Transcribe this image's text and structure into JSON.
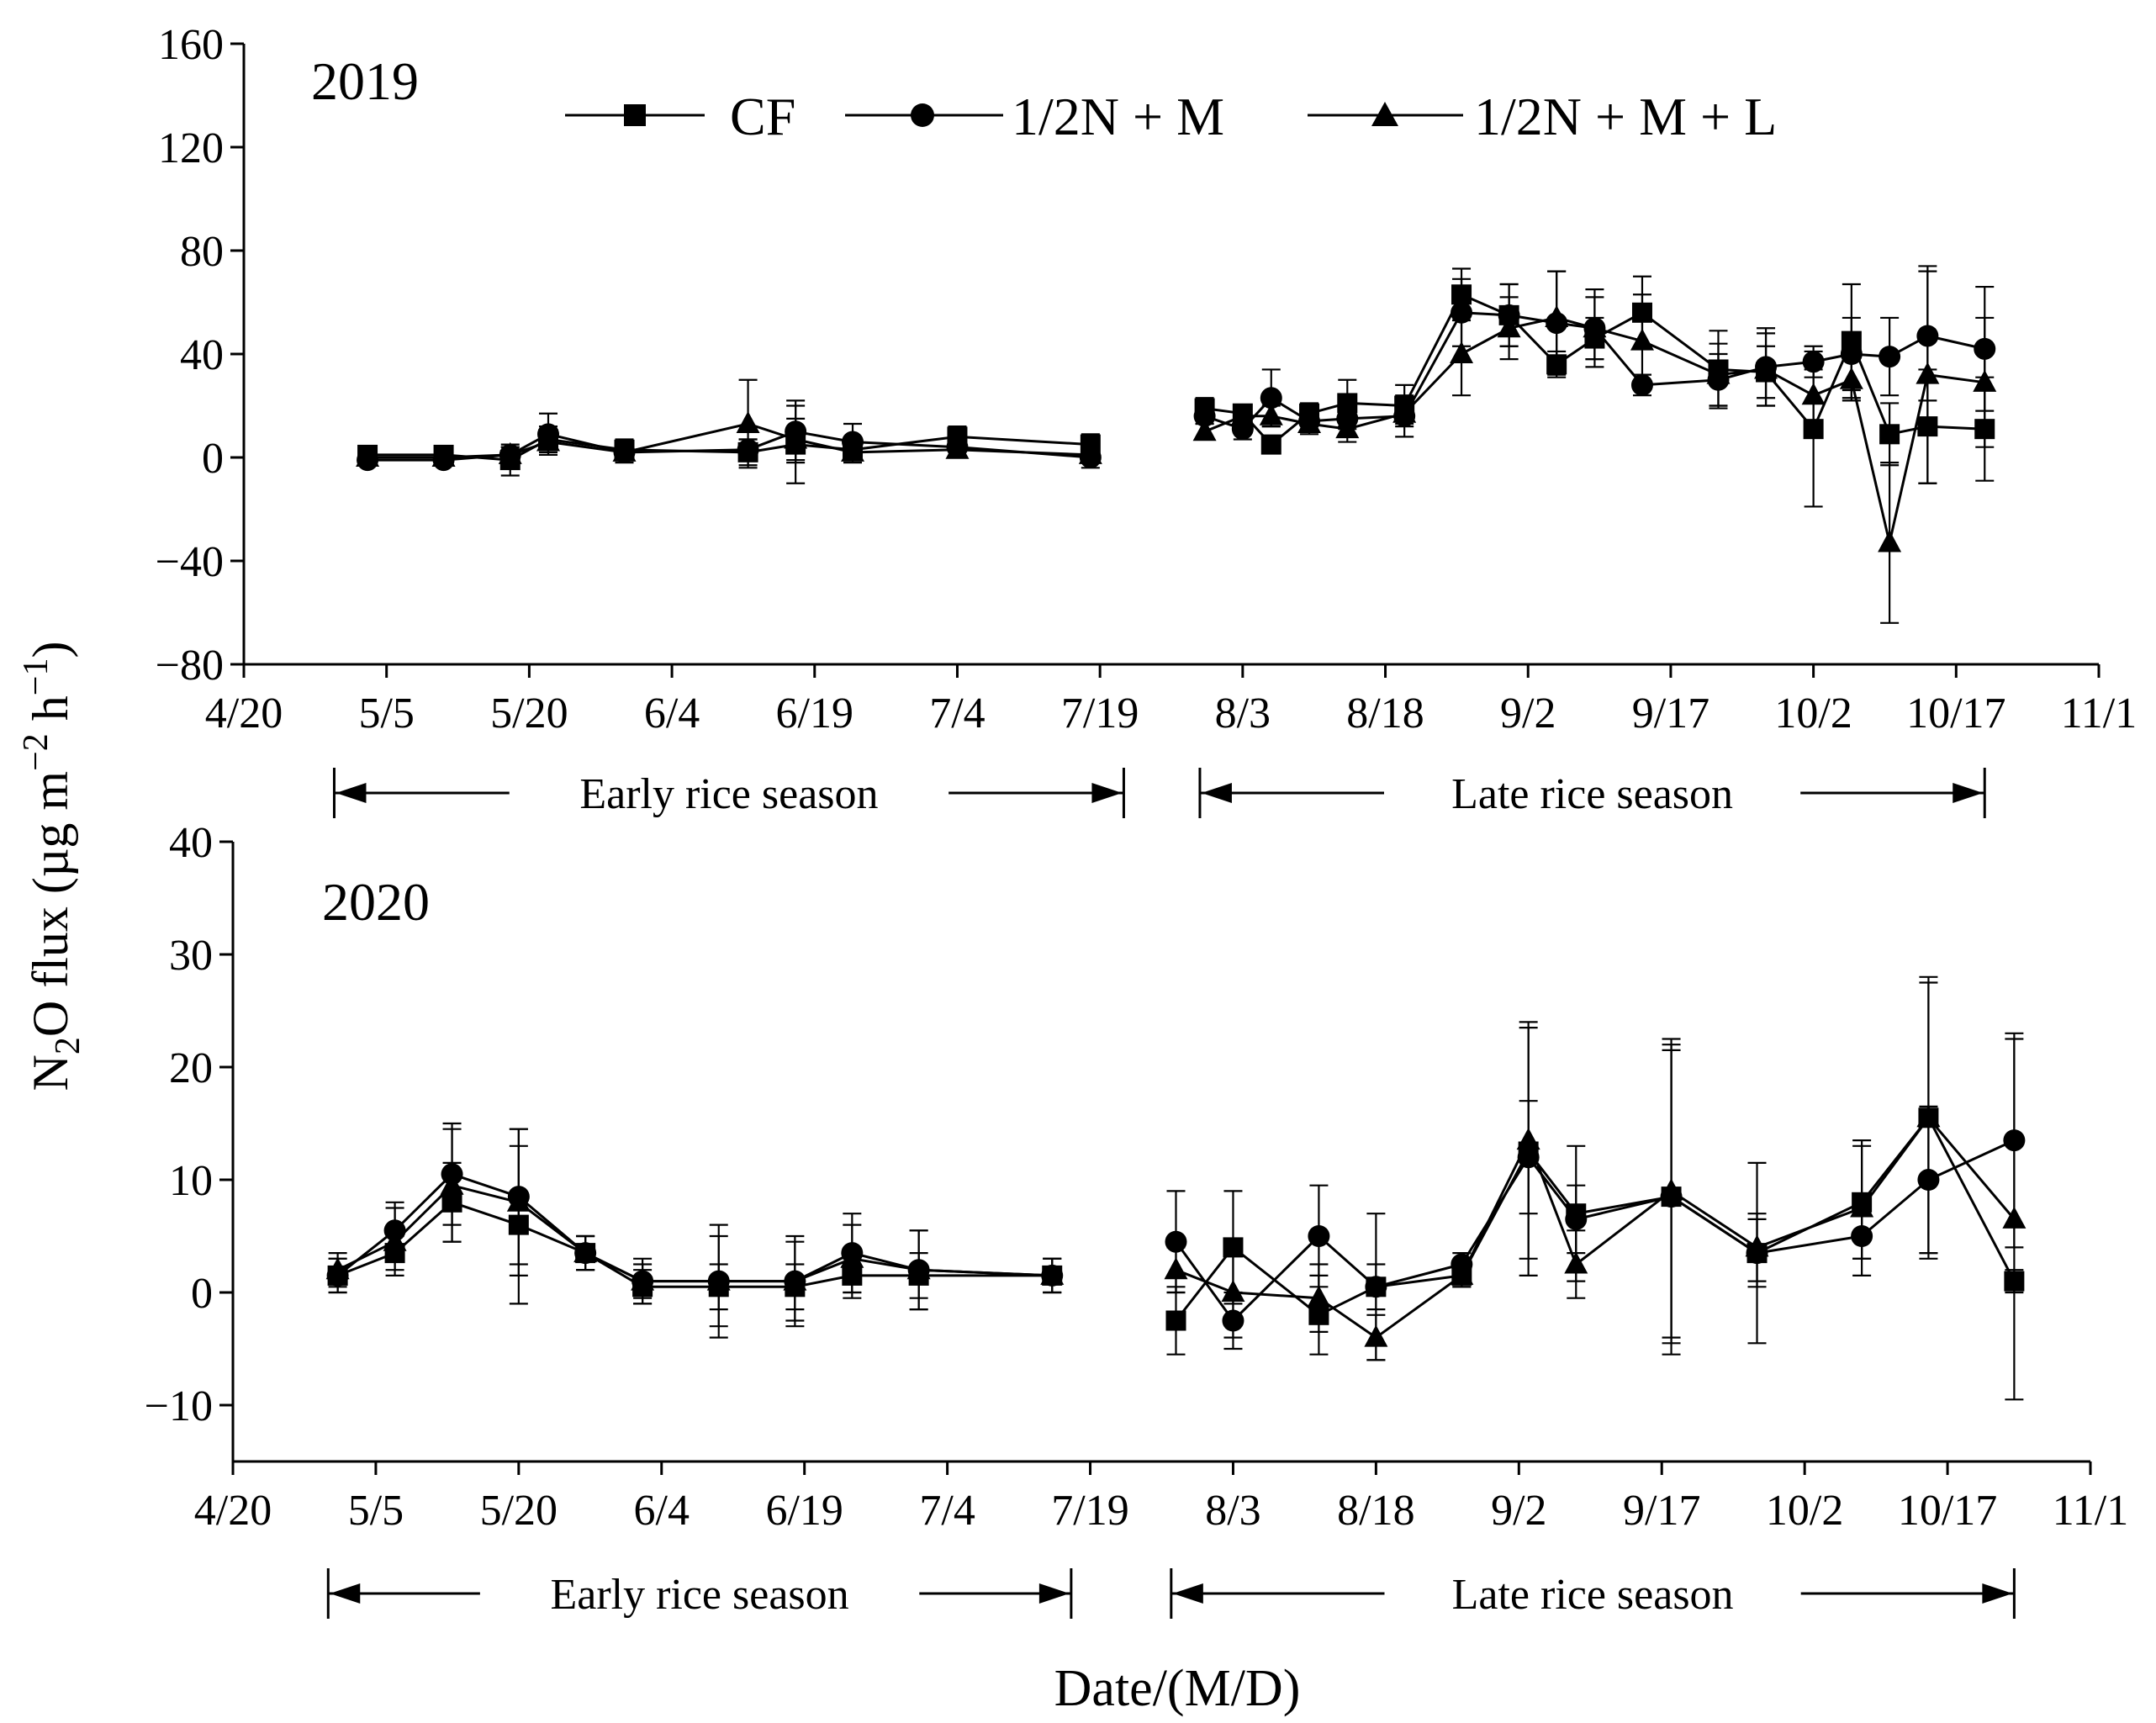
{
  "figure": {
    "y_axis_label_main": "N",
    "y_axis_label_sub": "2",
    "y_axis_label_rest": "O flux (µg m",
    "y_axis_label_exp1": "−2",
    "y_axis_label_mid": " h",
    "y_axis_label_exp2": "−1",
    "y_axis_label_end": ")",
    "x_axis_label": "Date/(M/D)",
    "line_color": "#000000",
    "background": "#ffffff"
  },
  "legend": [
    "CF",
    "1/2N + M",
    "1/2N + M + L"
  ],
  "chart_data": [
    {
      "type": "line",
      "title": "2019",
      "xlabel": "Date/(M/D)",
      "ylabel": "N2O flux (µg m−2 h−1)",
      "x_unit": "day of year",
      "xlim": [
        110,
        305
      ],
      "ylim": [
        -80,
        160
      ],
      "x_ticks": [
        110,
        125,
        140,
        155,
        170,
        185,
        200,
        215,
        230,
        245,
        260,
        275,
        290,
        305
      ],
      "x_tick_labels": [
        "4/20",
        "5/5",
        "5/20",
        "6/4",
        "6/19",
        "7/4",
        "7/19",
        "8/3",
        "8/18",
        "9/2",
        "9/17",
        "10/2",
        "10/17",
        "11/1"
      ],
      "y_ticks": [
        -80,
        -40,
        0,
        40,
        80,
        120,
        160
      ],
      "y_tick_labels": [
        "−80",
        "−40",
        "0",
        "40",
        "80",
        "120",
        "160"
      ],
      "seasons": [
        {
          "label": "Early rice season",
          "start": 119.5,
          "end": 202.5
        },
        {
          "label": "Late rice season",
          "start": 210.5,
          "end": 293
        }
      ],
      "series": [
        {
          "name": "CF",
          "marker": "square",
          "segments": [
            {
              "x": [
                123,
                131,
                138,
                142,
                150,
                163,
                168,
                174,
                185,
                199
              ],
              "y": [
                1,
                1,
                -1,
                7,
                3,
                2,
                5,
                3,
                8,
                5
              ],
              "err": [
                2,
                2,
                6,
                5,
                4,
                5,
                15,
                4,
                4,
                4
              ]
            },
            {
              "x": [
                211,
                215,
                218,
                222,
                226,
                232,
                238,
                243,
                248,
                252,
                257,
                265,
                270,
                275,
                279,
                283,
                287,
                293
              ],
              "y": [
                19,
                17,
                5,
                17,
                21,
                20,
                63,
                55,
                36,
                46,
                56,
                34,
                33,
                11,
                45,
                9,
                12,
                11
              ],
              "err": [
                4,
                3,
                3,
                4,
                9,
                8,
                10,
                12,
                5,
                8,
                14,
                15,
                10,
                30,
                22,
                12,
                22,
                20
              ]
            }
          ]
        },
        {
          "name": "1/2N + M",
          "marker": "circle",
          "segments": [
            {
              "x": [
                123,
                131,
                138,
                142,
                150,
                163,
                168,
                174,
                185,
                199
              ],
              "y": [
                -1,
                -1,
                1,
                9,
                2,
                3,
                10,
                6,
                4,
                0
              ],
              "err": [
                2,
                2,
                3,
                8,
                4,
                4,
                12,
                7,
                4,
                4
              ]
            },
            {
              "x": [
                211,
                215,
                218,
                222,
                226,
                232,
                238,
                243,
                248,
                252,
                257,
                265,
                270,
                275,
                279,
                283,
                287,
                293
              ],
              "y": [
                16,
                11,
                23,
                14,
                15,
                16,
                56,
                55,
                52,
                50,
                28,
                30,
                35,
                37,
                40,
                39,
                47,
                42
              ],
              "err": [
                3,
                4,
                11,
                4,
                4,
                8,
                13,
                12,
                20,
                15,
                4,
                10,
                15,
                6,
                14,
                15,
                25,
                24
              ]
            }
          ]
        },
        {
          "name": "1/2N + M + L",
          "marker": "triangle",
          "segments": [
            {
              "x": [
                123,
                131,
                138,
                142,
                150,
                163,
                168,
                174,
                185,
                199
              ],
              "y": [
                0,
                0,
                1,
                6,
                2,
                13,
                7,
                2,
                3,
                1
              ],
              "err": [
                2,
                2,
                3,
                5,
                3,
                17,
                8,
                4,
                3,
                3
              ]
            },
            {
              "x": [
                211,
                215,
                218,
                222,
                226,
                232,
                238,
                243,
                248,
                252,
                257,
                265,
                270,
                275,
                279,
                283,
                287,
                293
              ],
              "y": [
                10,
                16,
                16,
                13,
                11,
                17,
                40,
                50,
                54,
                50,
                45,
                32,
                34,
                24,
                30,
                -33,
                32,
                29
              ],
              "err": [
                3,
                4,
                4,
                4,
                5,
                4,
                16,
                12,
                18,
                12,
                18,
                12,
                14,
                10,
                8,
                31,
                42,
                25
              ]
            }
          ]
        }
      ]
    },
    {
      "type": "line",
      "title": "2020",
      "xlabel": "Date/(M/D)",
      "ylabel": "N2O flux (µg m−2 h−1)",
      "x_unit": "day of year",
      "xlim": [
        110,
        305
      ],
      "ylim": [
        -15,
        40
      ],
      "x_ticks": [
        110,
        125,
        140,
        155,
        170,
        185,
        200,
        215,
        230,
        245,
        260,
        275,
        290,
        305
      ],
      "x_tick_labels": [
        "4/20",
        "5/5",
        "5/20",
        "6/4",
        "6/19",
        "7/4",
        "7/19",
        "8/3",
        "8/18",
        "9/2",
        "9/17",
        "10/2",
        "10/17",
        "11/1"
      ],
      "y_ticks": [
        -10,
        0,
        10,
        20,
        30,
        40
      ],
      "y_tick_labels": [
        "−10",
        "0",
        "10",
        "20",
        "30",
        "40"
      ],
      "seasons": [
        {
          "label": "Early rice season",
          "start": 120,
          "end": 198
        },
        {
          "label": "Late rice season",
          "start": 208.5,
          "end": 297
        }
      ],
      "series": [
        {
          "name": "CF",
          "marker": "square",
          "segments": [
            {
              "x": [
                121,
                127,
                133,
                140,
                147,
                153,
                161,
                169,
                175,
                182,
                196
              ],
              "y": [
                1.5,
                3.5,
                8,
                6,
                3.5,
                0.5,
                0.5,
                0.5,
                1.5,
                1.5,
                1.5
              ],
              "err": [
                1.5,
                1.5,
                3.5,
                7,
                1.5,
                1.5,
                2,
                2,
                2,
                2,
                1.5
              ]
            },
            {
              "x": [
                209,
                215,
                224,
                230,
                239,
                246,
                251,
                261,
                270,
                281,
                288,
                297
              ],
              "y": [
                -2.5,
                4,
                -2,
                0.5,
                1.5,
                12.5,
                7,
                8.5,
                3.5,
                8,
                15.5,
                1
              ],
              "err": [
                3,
                5,
                3.5,
                6.5,
                1,
                11,
                6,
                13,
                8,
                5,
                12,
                1
              ]
            }
          ]
        },
        {
          "name": "1/2N + M",
          "marker": "circle",
          "segments": [
            {
              "x": [
                121,
                127,
                133,
                140,
                147,
                153,
                161,
                169,
                175,
                182,
                196
              ],
              "y": [
                1.5,
                5.5,
                10.5,
                8.5,
                3.5,
                1,
                1,
                1,
                3.5,
                2,
                1.5
              ],
              "err": [
                1.5,
                2.5,
                4.5,
                6,
                1.5,
                2,
                5,
                4,
                3.5,
                3.5,
                1.5
              ]
            },
            {
              "x": [
                209,
                215,
                224,
                230,
                239,
                246,
                251,
                261,
                270,
                281,
                288,
                297
              ],
              "y": [
                4.5,
                -2.5,
                5,
                0.5,
                2.5,
                12,
                6.5,
                8.5,
                3.5,
                5,
                10,
                13.5
              ],
              "err": [
                4.5,
                2.5,
                4.5,
                2,
                1,
                5,
                3,
                14,
                3,
                2,
                6.5,
                9.5
              ]
            }
          ]
        },
        {
          "name": "1/2N + M + L",
          "marker": "triangle",
          "segments": [
            {
              "x": [
                121,
                127,
                133,
                140,
                147,
                153,
                161,
                169,
                175,
                182,
                196
              ],
              "y": [
                2,
                4.5,
                9.5,
                8,
                3.5,
                1,
                1,
                1,
                3,
                2,
                1.5
              ],
              "err": [
                1.5,
                3,
                5,
                6.5,
                1.5,
                1.5,
                4,
                3.5,
                3,
                3.5,
                1.5
              ]
            },
            {
              "x": [
                209,
                215,
                224,
                230,
                239,
                246,
                251,
                261,
                270,
                281,
                288,
                297
              ],
              "y": [
                2,
                0,
                -0.5,
                -4,
                1.5,
                13.5,
                2.5,
                9,
                4,
                7.5,
                15.5,
                6.5
              ],
              "err": [
                2,
                4,
                3,
                2,
                1,
                10.5,
                3,
                13,
                3,
                6,
                12.5,
                16
              ]
            }
          ]
        }
      ]
    }
  ]
}
